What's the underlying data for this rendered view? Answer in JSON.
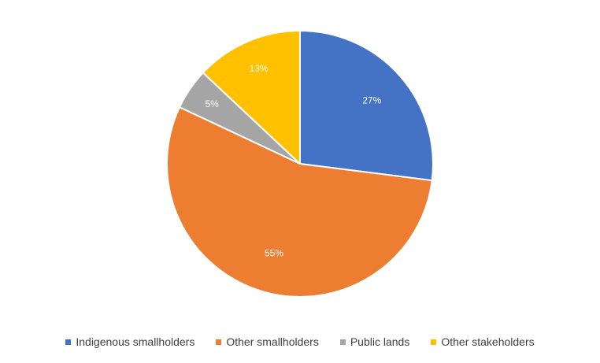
{
  "chart_data": {
    "type": "pie",
    "title": "",
    "categories": [
      "Indigenous smallholders",
      "Other smallholders",
      "Public lands",
      "Other stakeholders"
    ],
    "values": [
      27,
      55,
      5,
      13
    ],
    "data_labels": [
      "27%",
      "55%",
      "5%",
      "13%"
    ],
    "colors": [
      "#4472C4",
      "#ED7D31",
      "#A5A5A5",
      "#FFC000"
    ],
    "start_angle": "12 o'clock, clockwise",
    "legend_position": "bottom"
  }
}
